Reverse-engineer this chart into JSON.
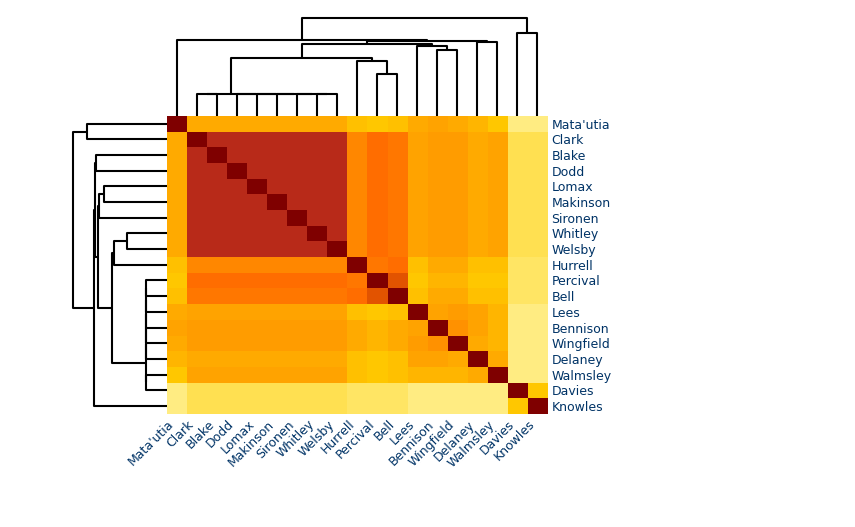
{
  "labels_ordered": [
    "Davies",
    "Knowles",
    "Percival",
    "Hurrell",
    "Bell",
    "Bennison",
    "Mata'utia",
    "Wingfield",
    "Lees",
    "Delaney",
    "Walmsley",
    "Whitley",
    "Welsby",
    "Sironen",
    "Makinson",
    "Lomax",
    "Dodd",
    "Clark",
    "Blake"
  ],
  "background_color": "#ffffff",
  "label_color": "#003366",
  "label_fontsize": 9,
  "fig_width": 8.55,
  "fig_height": 5.27,
  "heatmap_matrix": [
    [
      1.0,
      0.3,
      0.18,
      0.18,
      0.18,
      0.15,
      0.15,
      0.15,
      0.15,
      0.15,
      0.15,
      0.2,
      0.2,
      0.2,
      0.2,
      0.2,
      0.2,
      0.2,
      0.2
    ],
    [
      0.3,
      1.0,
      0.18,
      0.18,
      0.18,
      0.15,
      0.15,
      0.15,
      0.15,
      0.15,
      0.15,
      0.2,
      0.2,
      0.2,
      0.2,
      0.2,
      0.2,
      0.2,
      0.2
    ],
    [
      0.18,
      0.18,
      1.0,
      0.52,
      0.65,
      0.35,
      0.3,
      0.35,
      0.3,
      0.3,
      0.3,
      0.55,
      0.55,
      0.55,
      0.55,
      0.55,
      0.55,
      0.55,
      0.55
    ],
    [
      0.18,
      0.18,
      0.52,
      1.0,
      0.55,
      0.38,
      0.32,
      0.38,
      0.32,
      0.32,
      0.32,
      0.48,
      0.48,
      0.48,
      0.48,
      0.48,
      0.48,
      0.48,
      0.48
    ],
    [
      0.18,
      0.18,
      0.65,
      0.55,
      1.0,
      0.38,
      0.32,
      0.38,
      0.32,
      0.32,
      0.32,
      0.52,
      0.52,
      0.52,
      0.52,
      0.52,
      0.52,
      0.52,
      0.52
    ],
    [
      0.15,
      0.15,
      0.35,
      0.38,
      0.38,
      1.0,
      0.4,
      0.45,
      0.4,
      0.4,
      0.35,
      0.42,
      0.42,
      0.42,
      0.42,
      0.42,
      0.42,
      0.42,
      0.42
    ],
    [
      0.15,
      0.15,
      0.3,
      0.32,
      0.32,
      0.4,
      1.0,
      0.38,
      0.38,
      0.35,
      0.3,
      0.38,
      0.38,
      0.38,
      0.38,
      0.38,
      0.38,
      0.38,
      0.38
    ],
    [
      0.15,
      0.15,
      0.35,
      0.38,
      0.38,
      0.45,
      0.38,
      1.0,
      0.42,
      0.38,
      0.35,
      0.42,
      0.42,
      0.42,
      0.42,
      0.42,
      0.42,
      0.42,
      0.42
    ],
    [
      0.15,
      0.15,
      0.3,
      0.32,
      0.32,
      0.4,
      0.38,
      0.42,
      1.0,
      0.4,
      0.35,
      0.4,
      0.4,
      0.4,
      0.4,
      0.4,
      0.4,
      0.4,
      0.4
    ],
    [
      0.15,
      0.15,
      0.3,
      0.32,
      0.32,
      0.4,
      0.35,
      0.38,
      0.4,
      1.0,
      0.38,
      0.38,
      0.38,
      0.38,
      0.38,
      0.38,
      0.38,
      0.38,
      0.38
    ],
    [
      0.15,
      0.15,
      0.3,
      0.32,
      0.32,
      0.35,
      0.3,
      0.35,
      0.35,
      0.38,
      1.0,
      0.4,
      0.4,
      0.4,
      0.4,
      0.4,
      0.4,
      0.4,
      0.4
    ],
    [
      0.2,
      0.2,
      0.55,
      0.48,
      0.52,
      0.42,
      0.38,
      0.42,
      0.4,
      0.38,
      0.4,
      1.0,
      0.82,
      0.82,
      0.82,
      0.82,
      0.82,
      0.82,
      0.82
    ],
    [
      0.2,
      0.2,
      0.55,
      0.48,
      0.52,
      0.42,
      0.38,
      0.42,
      0.4,
      0.38,
      0.4,
      0.82,
      1.0,
      0.82,
      0.82,
      0.82,
      0.82,
      0.82,
      0.82
    ],
    [
      0.2,
      0.2,
      0.55,
      0.48,
      0.52,
      0.42,
      0.38,
      0.42,
      0.4,
      0.38,
      0.4,
      0.82,
      0.82,
      1.0,
      0.82,
      0.82,
      0.82,
      0.82,
      0.82
    ],
    [
      0.2,
      0.2,
      0.55,
      0.48,
      0.52,
      0.42,
      0.38,
      0.42,
      0.4,
      0.38,
      0.4,
      0.82,
      0.82,
      0.82,
      1.0,
      0.82,
      0.82,
      0.82,
      0.82
    ],
    [
      0.2,
      0.2,
      0.55,
      0.48,
      0.52,
      0.42,
      0.38,
      0.42,
      0.4,
      0.38,
      0.4,
      0.82,
      0.82,
      0.82,
      0.82,
      1.0,
      0.82,
      0.82,
      0.82
    ],
    [
      0.2,
      0.2,
      0.55,
      0.48,
      0.52,
      0.42,
      0.38,
      0.42,
      0.4,
      0.38,
      0.4,
      0.82,
      0.82,
      0.82,
      0.82,
      0.82,
      1.0,
      0.82,
      0.82
    ],
    [
      0.2,
      0.2,
      0.55,
      0.48,
      0.52,
      0.42,
      0.38,
      0.42,
      0.4,
      0.38,
      0.4,
      0.82,
      0.82,
      0.82,
      0.82,
      0.82,
      0.82,
      1.0,
      0.82
    ],
    [
      0.2,
      0.2,
      0.55,
      0.48,
      0.52,
      0.42,
      0.38,
      0.42,
      0.4,
      0.38,
      0.4,
      0.82,
      0.82,
      0.82,
      0.82,
      0.82,
      0.82,
      0.82,
      1.0
    ]
  ],
  "colormap_colors": [
    "#ffffcc",
    "#ffee88",
    "#ffcc00",
    "#ff9900",
    "#ff6600",
    "#cc4400",
    "#b22222",
    "#7f0000"
  ],
  "vmin": 0.0,
  "vmax": 1.0
}
